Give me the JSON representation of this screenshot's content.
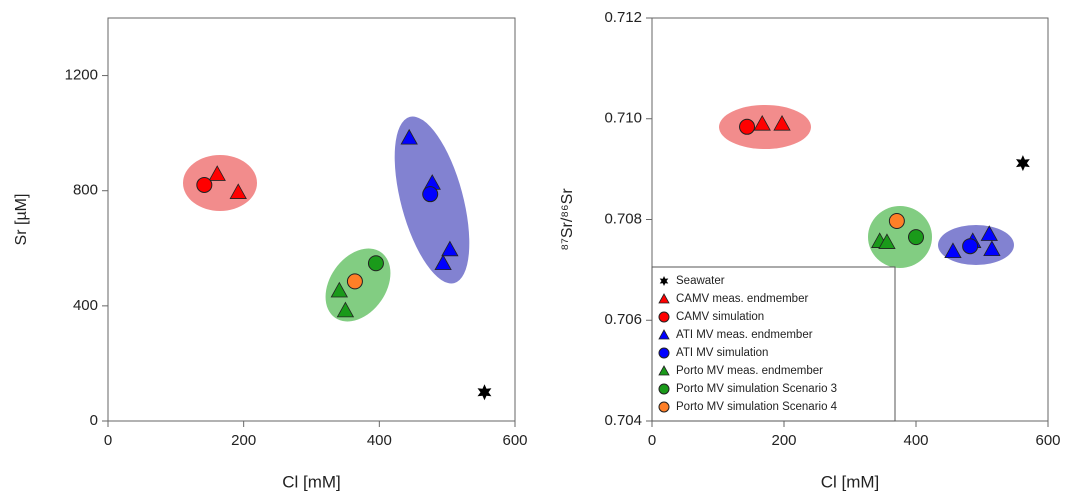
{
  "chart_data": [
    {
      "type": "scatter",
      "x_label": "Cl [mM]",
      "y_label": "Sr [µM]",
      "xlim": [
        0,
        600
      ],
      "xticks": [
        0,
        200,
        400,
        600
      ],
      "ylim": [
        0,
        1400
      ],
      "yticks": [
        0,
        400,
        800,
        1200
      ],
      "series": [
        {
          "color": "#000000",
          "marker": "star",
          "x": [
            555
          ],
          "values": [
            100
          ]
        },
        {
          "color": "#ff0000",
          "marker": "triangle",
          "x": [
            161,
            192
          ],
          "values": [
            858,
            795
          ]
        },
        {
          "color": "#ff0000",
          "marker": "circle",
          "x": [
            142
          ],
          "values": [
            820
          ]
        },
        {
          "color": "#0000ff",
          "marker": "triangle",
          "x": [
            444,
            478,
            504,
            494
          ],
          "values": [
            984,
            827,
            596,
            548
          ]
        },
        {
          "color": "#0000ff",
          "marker": "circle",
          "x": [
            475
          ],
          "values": [
            788
          ]
        },
        {
          "color": "#1a9a1a",
          "marker": "triangle",
          "x": [
            341,
            350
          ],
          "values": [
            453,
            384
          ]
        },
        {
          "color": "#1a9a1a",
          "marker": "circle",
          "x": [
            395
          ],
          "values": [
            548
          ]
        },
        {
          "color": "#ff7f27",
          "marker": "circle",
          "x": [
            364
          ],
          "values": [
            485
          ]
        }
      ]
    },
    {
      "type": "scatter",
      "x_label": "Cl [mM]",
      "y_label": "⁸⁷Sr/⁸⁶Sr",
      "xlim": [
        0,
        600
      ],
      "xticks": [
        0,
        200,
        400,
        600
      ],
      "ylim": [
        0.704,
        0.712
      ],
      "yticks": [
        0.704,
        0.706,
        0.708,
        {
          "value": 0.71,
          "label": "0.710"
        },
        0.712
      ],
      "legend": "lower-left",
      "series": [
        {
          "name": "Seawater",
          "color": "#000000",
          "marker": "star",
          "x": [
            562
          ],
          "values": [
            0.70912
          ]
        },
        {
          "name": "CAMV meas. endmember",
          "color": "#ff0000",
          "marker": "triangle",
          "x": [
            167,
            197
          ],
          "values": [
            0.7099,
            0.7099
          ]
        },
        {
          "name": "CAMV simulation",
          "color": "#ff0000",
          "marker": "circle",
          "x": [
            144
          ],
          "values": [
            0.70984
          ]
        },
        {
          "name": "ATI MV meas. endmember",
          "color": "#0000ff",
          "marker": "triangle",
          "x": [
            456,
            486,
            511,
            515
          ],
          "values": [
            0.70737,
            0.70757,
            0.70771,
            0.70741
          ]
        },
        {
          "name": "ATI MV simulation",
          "color": "#0000ff",
          "marker": "circle",
          "x": [
            482
          ],
          "values": [
            0.70747
          ]
        },
        {
          "name": "Porto MV meas. endmember",
          "color": "#1a9a1a",
          "marker": "triangle",
          "x": [
            345,
            356
          ],
          "values": [
            0.70757,
            0.70755
          ]
        },
        {
          "name": "Porto MV simulation Scenario 3",
          "color": "#1a9a1a",
          "marker": "circle",
          "x": [
            400
          ],
          "values": [
            0.70765
          ]
        },
        {
          "name": "Porto MV simulation Scenario 4",
          "color": "#ff7f27",
          "marker": "circle",
          "x": [
            371
          ],
          "values": [
            0.70797
          ]
        }
      ]
    }
  ]
}
